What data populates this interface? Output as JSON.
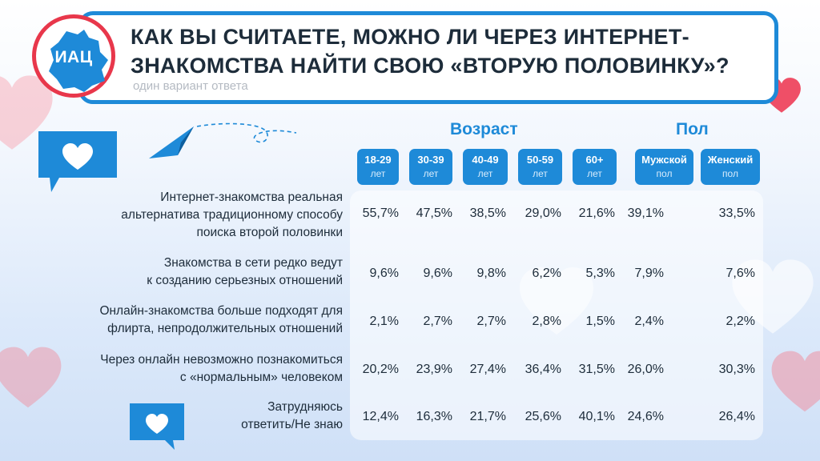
{
  "header": {
    "logo_text": "ИАЦ",
    "title_line1": "КАК ВЫ СЧИТАЕТЕ, МОЖНО ЛИ ЧЕРЕЗ ИНТЕРНЕТ-",
    "title_line2": "ЗНАКОМСТВА НАЙТИ СВОЮ «ВТОРУЮ ПОЛОВИНКУ»?",
    "subtitle": "один вариант ответа"
  },
  "groups": {
    "age": "Возраст",
    "gender": "Пол"
  },
  "columns": [
    {
      "line1": "18-29",
      "line2": "лет"
    },
    {
      "line1": "30-39",
      "line2": "лет"
    },
    {
      "line1": "40-49",
      "line2": "лет"
    },
    {
      "line1": "50-59",
      "line2": "лет"
    },
    {
      "line1": "60+",
      "line2": "лет"
    },
    {
      "line1": "Мужской",
      "line2": "пол"
    },
    {
      "line1": "Женский",
      "line2": "пол"
    }
  ],
  "rows": [
    {
      "label": [
        "Интернет-знакомства реальная",
        "альтернатива традиционному способу",
        "поиска второй половинки"
      ],
      "values": [
        "55,7%",
        "47,5%",
        "38,5%",
        "29,0%",
        "21,6%",
        "39,1%",
        "33,5%"
      ]
    },
    {
      "label": [
        "Знакомства в сети редко ведут",
        "к созданию серьезных отношений"
      ],
      "values": [
        "9,6%",
        "9,6%",
        "9,8%",
        "6,2%",
        "5,3%",
        "7,9%",
        "7,6%"
      ]
    },
    {
      "label": [
        "Онлайн-знакомства больше подходят для",
        "флирта, непродолжительных отношений"
      ],
      "values": [
        "2,1%",
        "2,7%",
        "2,7%",
        "2,8%",
        "1,5%",
        "2,4%",
        "2,2%"
      ]
    },
    {
      "label": [
        "Через онлайн невозможно познакомиться",
        "с «нормальным» человеком"
      ],
      "values": [
        "20,2%",
        "23,9%",
        "27,4%",
        "36,4%",
        "31,5%",
        "26,0%",
        "30,3%"
      ]
    },
    {
      "label": [
        "Затрудняюсь",
        "ответить/Не знаю"
      ],
      "values": [
        "12,4%",
        "16,3%",
        "21,7%",
        "25,6%",
        "40,1%",
        "24,6%",
        "26,4%"
      ]
    }
  ],
  "colors": {
    "accent_blue": "#1e8ad8",
    "accent_red": "#e8374b",
    "text_dark": "#1d2c3a"
  }
}
